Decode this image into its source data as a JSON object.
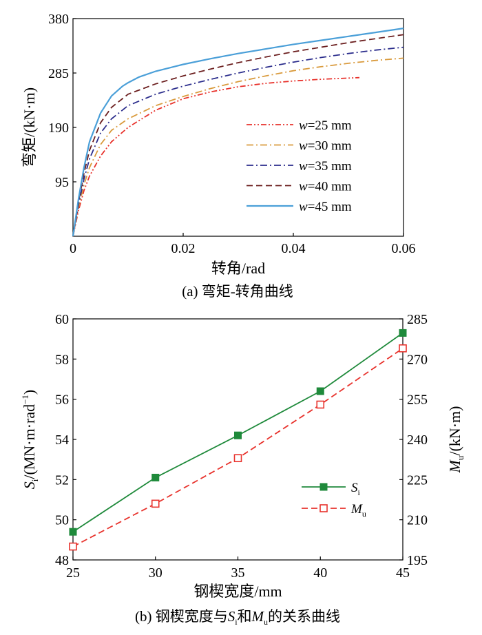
{
  "chart_data": [
    {
      "type": "line",
      "caption": "(a) 弯矩-转角曲线",
      "xlabel": "转角/rad",
      "ylabel": "弯矩/(kN·m)",
      "xlim": [
        0,
        0.06
      ],
      "ylim": [
        0,
        380
      ],
      "xticks": [
        "0",
        "0.02",
        "0.04",
        "0.06"
      ],
      "yticks": [
        "95",
        "190",
        "285",
        "380"
      ],
      "legend_position": "center-right",
      "series": [
        {
          "name": "w=25 mm",
          "label_var": "w",
          "label_rest": "=25 mm",
          "color": "#e8322c",
          "style": "dash-dot-dot",
          "x": [
            0,
            0.001,
            0.002,
            0.003,
            0.005,
            0.007,
            0.01,
            0.015,
            0.02,
            0.025,
            0.03,
            0.035,
            0.04,
            0.045,
            0.052
          ],
          "y": [
            0,
            45,
            80,
            105,
            140,
            165,
            190,
            220,
            240,
            252,
            261,
            267,
            271,
            274,
            277
          ]
        },
        {
          "name": "w=30 mm",
          "label_var": "w",
          "label_rest": "=30 mm",
          "color": "#d99a3c",
          "style": "dash-dot",
          "x": [
            0,
            0.001,
            0.002,
            0.003,
            0.005,
            0.007,
            0.01,
            0.015,
            0.02,
            0.025,
            0.03,
            0.035,
            0.04,
            0.045,
            0.05,
            0.055,
            0.06
          ],
          "y": [
            0,
            50,
            90,
            120,
            160,
            185,
            205,
            228,
            244,
            258,
            270,
            280,
            289,
            296,
            302,
            307,
            311
          ]
        },
        {
          "name": "w=35 mm",
          "label_var": "w",
          "label_rest": "=35 mm",
          "color": "#2b2d8c",
          "style": "dash-dot",
          "x": [
            0,
            0.001,
            0.002,
            0.003,
            0.005,
            0.007,
            0.01,
            0.015,
            0.02,
            0.025,
            0.03,
            0.035,
            0.04,
            0.045,
            0.05,
            0.055,
            0.06
          ],
          "y": [
            0,
            55,
            100,
            135,
            180,
            205,
            228,
            248,
            262,
            274,
            285,
            295,
            304,
            312,
            319,
            325,
            330
          ]
        },
        {
          "name": "w=40 mm",
          "label_var": "w",
          "label_rest": "=40 mm",
          "color": "#6b1e1e",
          "style": "dash",
          "x": [
            0,
            0.001,
            0.002,
            0.003,
            0.005,
            0.007,
            0.01,
            0.015,
            0.02,
            0.025,
            0.03,
            0.035,
            0.04,
            0.045,
            0.05,
            0.055,
            0.06
          ],
          "y": [
            0,
            60,
            110,
            150,
            198,
            225,
            248,
            266,
            280,
            292,
            303,
            313,
            322,
            330,
            338,
            345,
            352
          ]
        },
        {
          "name": "w=45 mm",
          "label_var": "w",
          "label_rest": "=45 mm",
          "color": "#4a9fd8",
          "style": "solid",
          "x": [
            0,
            0.001,
            0.002,
            0.003,
            0.005,
            0.007,
            0.009,
            0.01,
            0.012,
            0.015,
            0.02,
            0.025,
            0.03,
            0.035,
            0.04,
            0.045,
            0.05,
            0.055,
            0.06
          ],
          "y": [
            0,
            65,
            120,
            165,
            215,
            245,
            262,
            268,
            278,
            288,
            300,
            310,
            319,
            327,
            335,
            342,
            349,
            356,
            363
          ]
        }
      ]
    },
    {
      "type": "line",
      "caption_parts": [
        "(b) 钢楔宽度与",
        "S",
        "i",
        "和",
        "M",
        "u",
        "的关系曲线"
      ],
      "xlabel": "钢楔宽度/mm",
      "ylabel_left_parts": [
        "S",
        "i",
        "/(MN·m·rad",
        "−1",
        ")"
      ],
      "ylabel_right_parts": [
        "M",
        "u",
        "/(kN·m)"
      ],
      "categories": [
        25,
        30,
        35,
        40,
        45
      ],
      "xlim": [
        25,
        45
      ],
      "ylim_left": [
        48,
        60
      ],
      "ylim_right": [
        195,
        285
      ],
      "xticks": [
        "25",
        "30",
        "35",
        "40",
        "45"
      ],
      "yticks_left": [
        "48",
        "50",
        "52",
        "54",
        "56",
        "58",
        "60"
      ],
      "yticks_right": [
        "195",
        "210",
        "225",
        "240",
        "255",
        "270",
        "285"
      ],
      "legend_position": "center-right",
      "series": [
        {
          "name": "Si",
          "label_var": "S",
          "label_sub": "i",
          "axis": "left",
          "color": "#1f8a3b",
          "style": "solid",
          "marker": "filled-square",
          "values": [
            49.4,
            52.1,
            54.2,
            56.4,
            59.3
          ]
        },
        {
          "name": "Mu",
          "label_var": "M",
          "label_sub": "u",
          "axis": "right",
          "color": "#e8322c",
          "style": "dash",
          "marker": "open-square",
          "values": [
            200,
            216,
            233,
            253,
            274
          ]
        }
      ]
    }
  ]
}
